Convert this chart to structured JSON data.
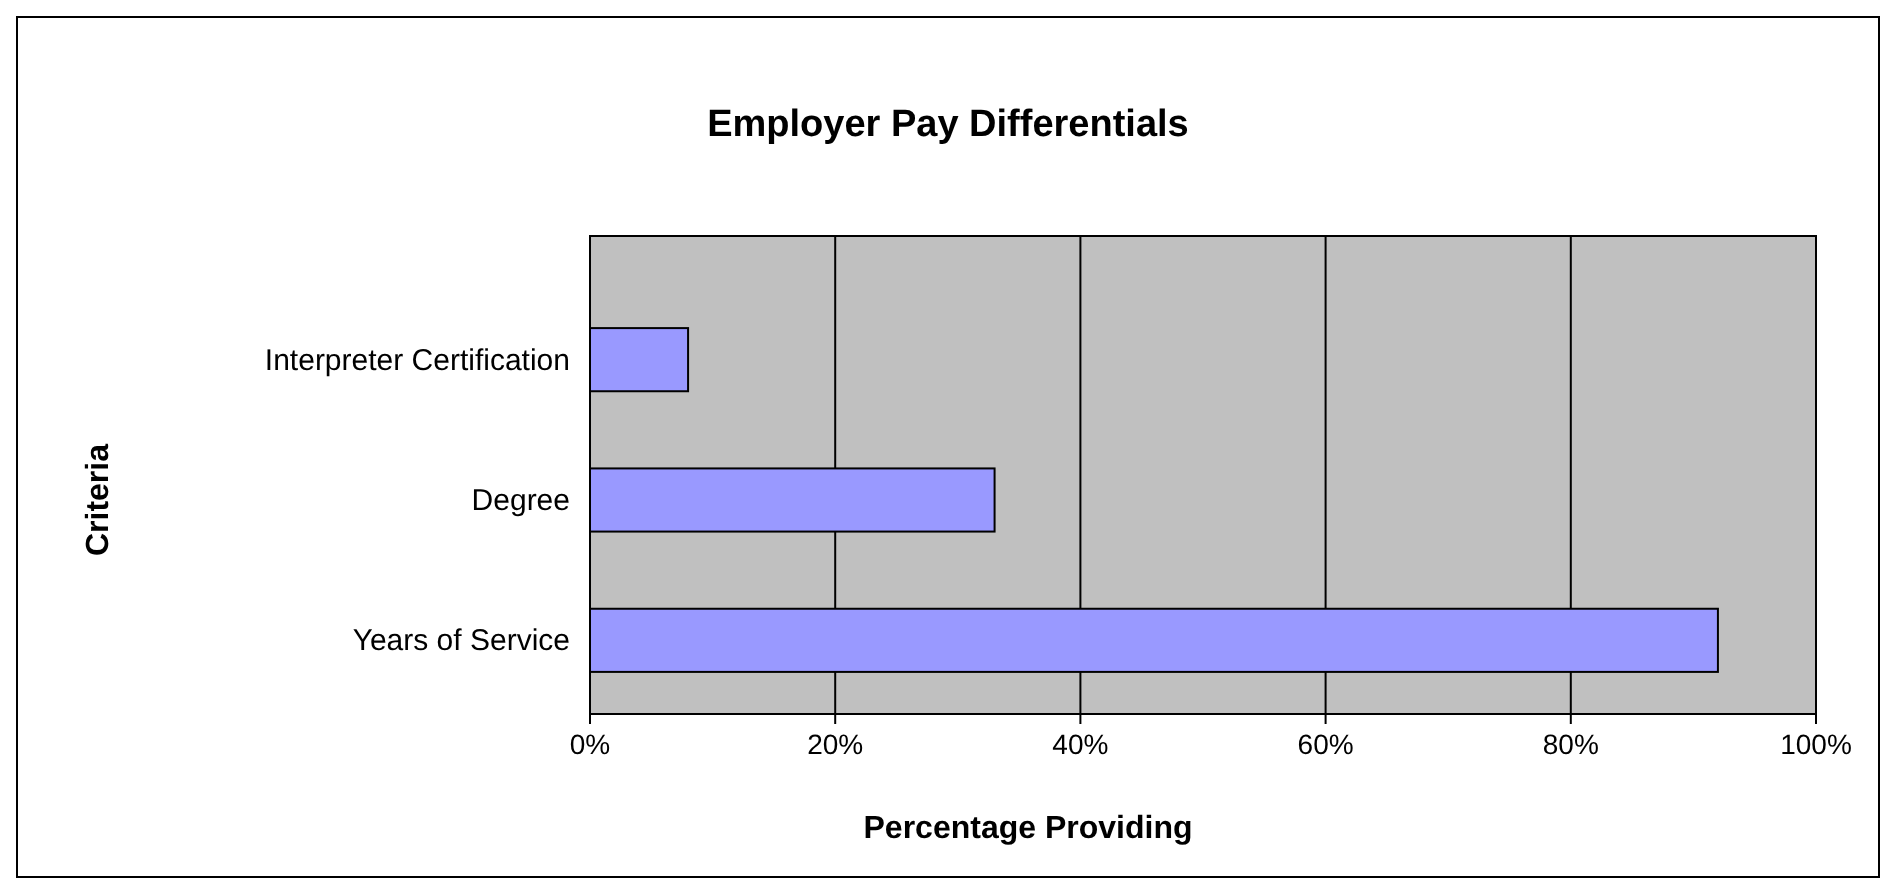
{
  "chart_data": {
    "type": "bar",
    "title": "Employer Pay Differentials",
    "xlabel": "Percentage Providing",
    "ylabel": "Criteria",
    "orientation": "horizontal",
    "categories": [
      "Interpreter Certification",
      "Degree",
      "Years of Service"
    ],
    "values": [
      0.08,
      0.33,
      0.92
    ],
    "color": "#9999ff",
    "xlim": [
      0,
      1
    ],
    "xticks": [
      {
        "value": 0,
        "label": "0%"
      },
      {
        "value": 0.2,
        "label": "20%"
      },
      {
        "value": 0.4,
        "label": "40%"
      },
      {
        "value": 0.6,
        "label": "60%"
      },
      {
        "value": 0.8,
        "label": "80%"
      },
      {
        "value": 1,
        "label": "100%"
      }
    ],
    "grid": "x"
  }
}
